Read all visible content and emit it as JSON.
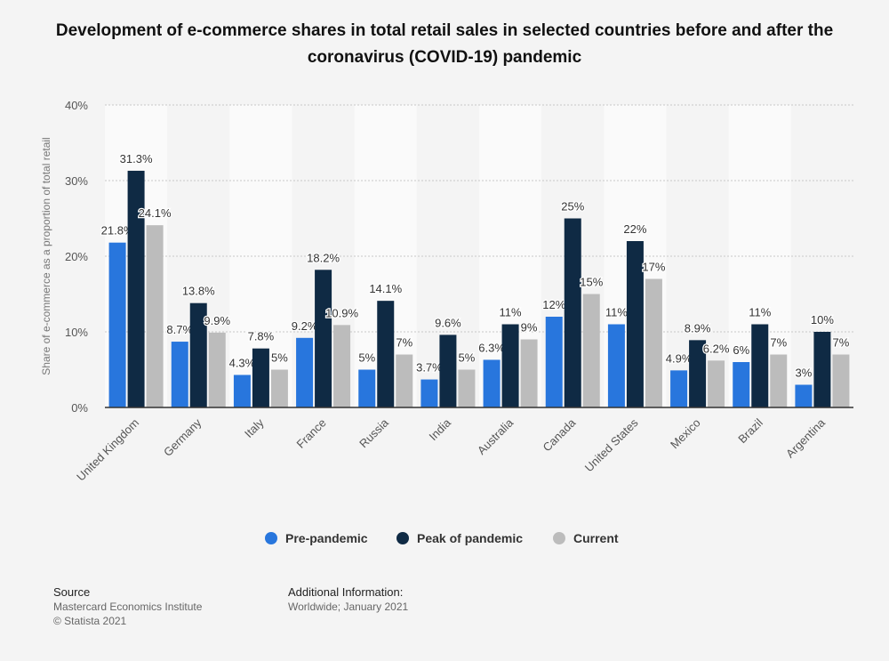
{
  "chart_data": {
    "type": "bar",
    "title": "Development of e-commerce shares in total retail sales in selected countries before and after the coronavirus (COVID-19) pandemic",
    "xlabel": "",
    "ylabel": "Share of e-commerce as a proportion of total retail",
    "ylim": [
      0,
      40
    ],
    "yticks": [
      "0%",
      "10%",
      "20%",
      "30%",
      "40%"
    ],
    "grid": true,
    "legend_position": "bottom",
    "categories": [
      "United Kingdom",
      "Germany",
      "Italy",
      "France",
      "Russia",
      "India",
      "Australia",
      "Canada",
      "United States",
      "Mexico",
      "Brazil",
      "Argentina"
    ],
    "series": [
      {
        "name": "Pre-pandemic",
        "color": "#2876dd",
        "values": [
          21.8,
          8.7,
          4.3,
          9.2,
          5,
          3.7,
          6.3,
          12,
          11,
          4.9,
          6,
          3
        ],
        "labels": [
          "21.8%",
          "8.7%",
          "4.3%",
          "9.2%",
          "5%",
          "3.7%",
          "6.3%",
          "12%",
          "11%",
          "4.9%",
          "6%",
          "3%"
        ]
      },
      {
        "name": "Peak of pandemic",
        "color": "#0f2a44",
        "values": [
          31.3,
          13.8,
          7.8,
          18.2,
          14.1,
          9.6,
          11,
          25,
          22,
          8.9,
          11,
          10
        ],
        "labels": [
          "31.3%",
          "13.8%",
          "7.8%",
          "18.2%",
          "14.1%",
          "9.6%",
          "11%",
          "25%",
          "22%",
          "8.9%",
          "11%",
          "10%"
        ]
      },
      {
        "name": "Current",
        "color": "#bcbcbc",
        "values": [
          24.1,
          9.9,
          5,
          10.9,
          7,
          5,
          9,
          15,
          17,
          6.2,
          7,
          7
        ],
        "labels": [
          "24.1%",
          "9.9%",
          "5%",
          "10.9%",
          "7%",
          "5%",
          "9%",
          "15%",
          "17%",
          "6.2%",
          "7%",
          "7%"
        ]
      }
    ]
  },
  "footer": {
    "source_heading": "Source",
    "source_lines": [
      "Mastercard Economics Institute",
      "© Statista 2021"
    ],
    "info_heading": "Additional Information:",
    "info_text": "Worldwide; January 2021"
  }
}
